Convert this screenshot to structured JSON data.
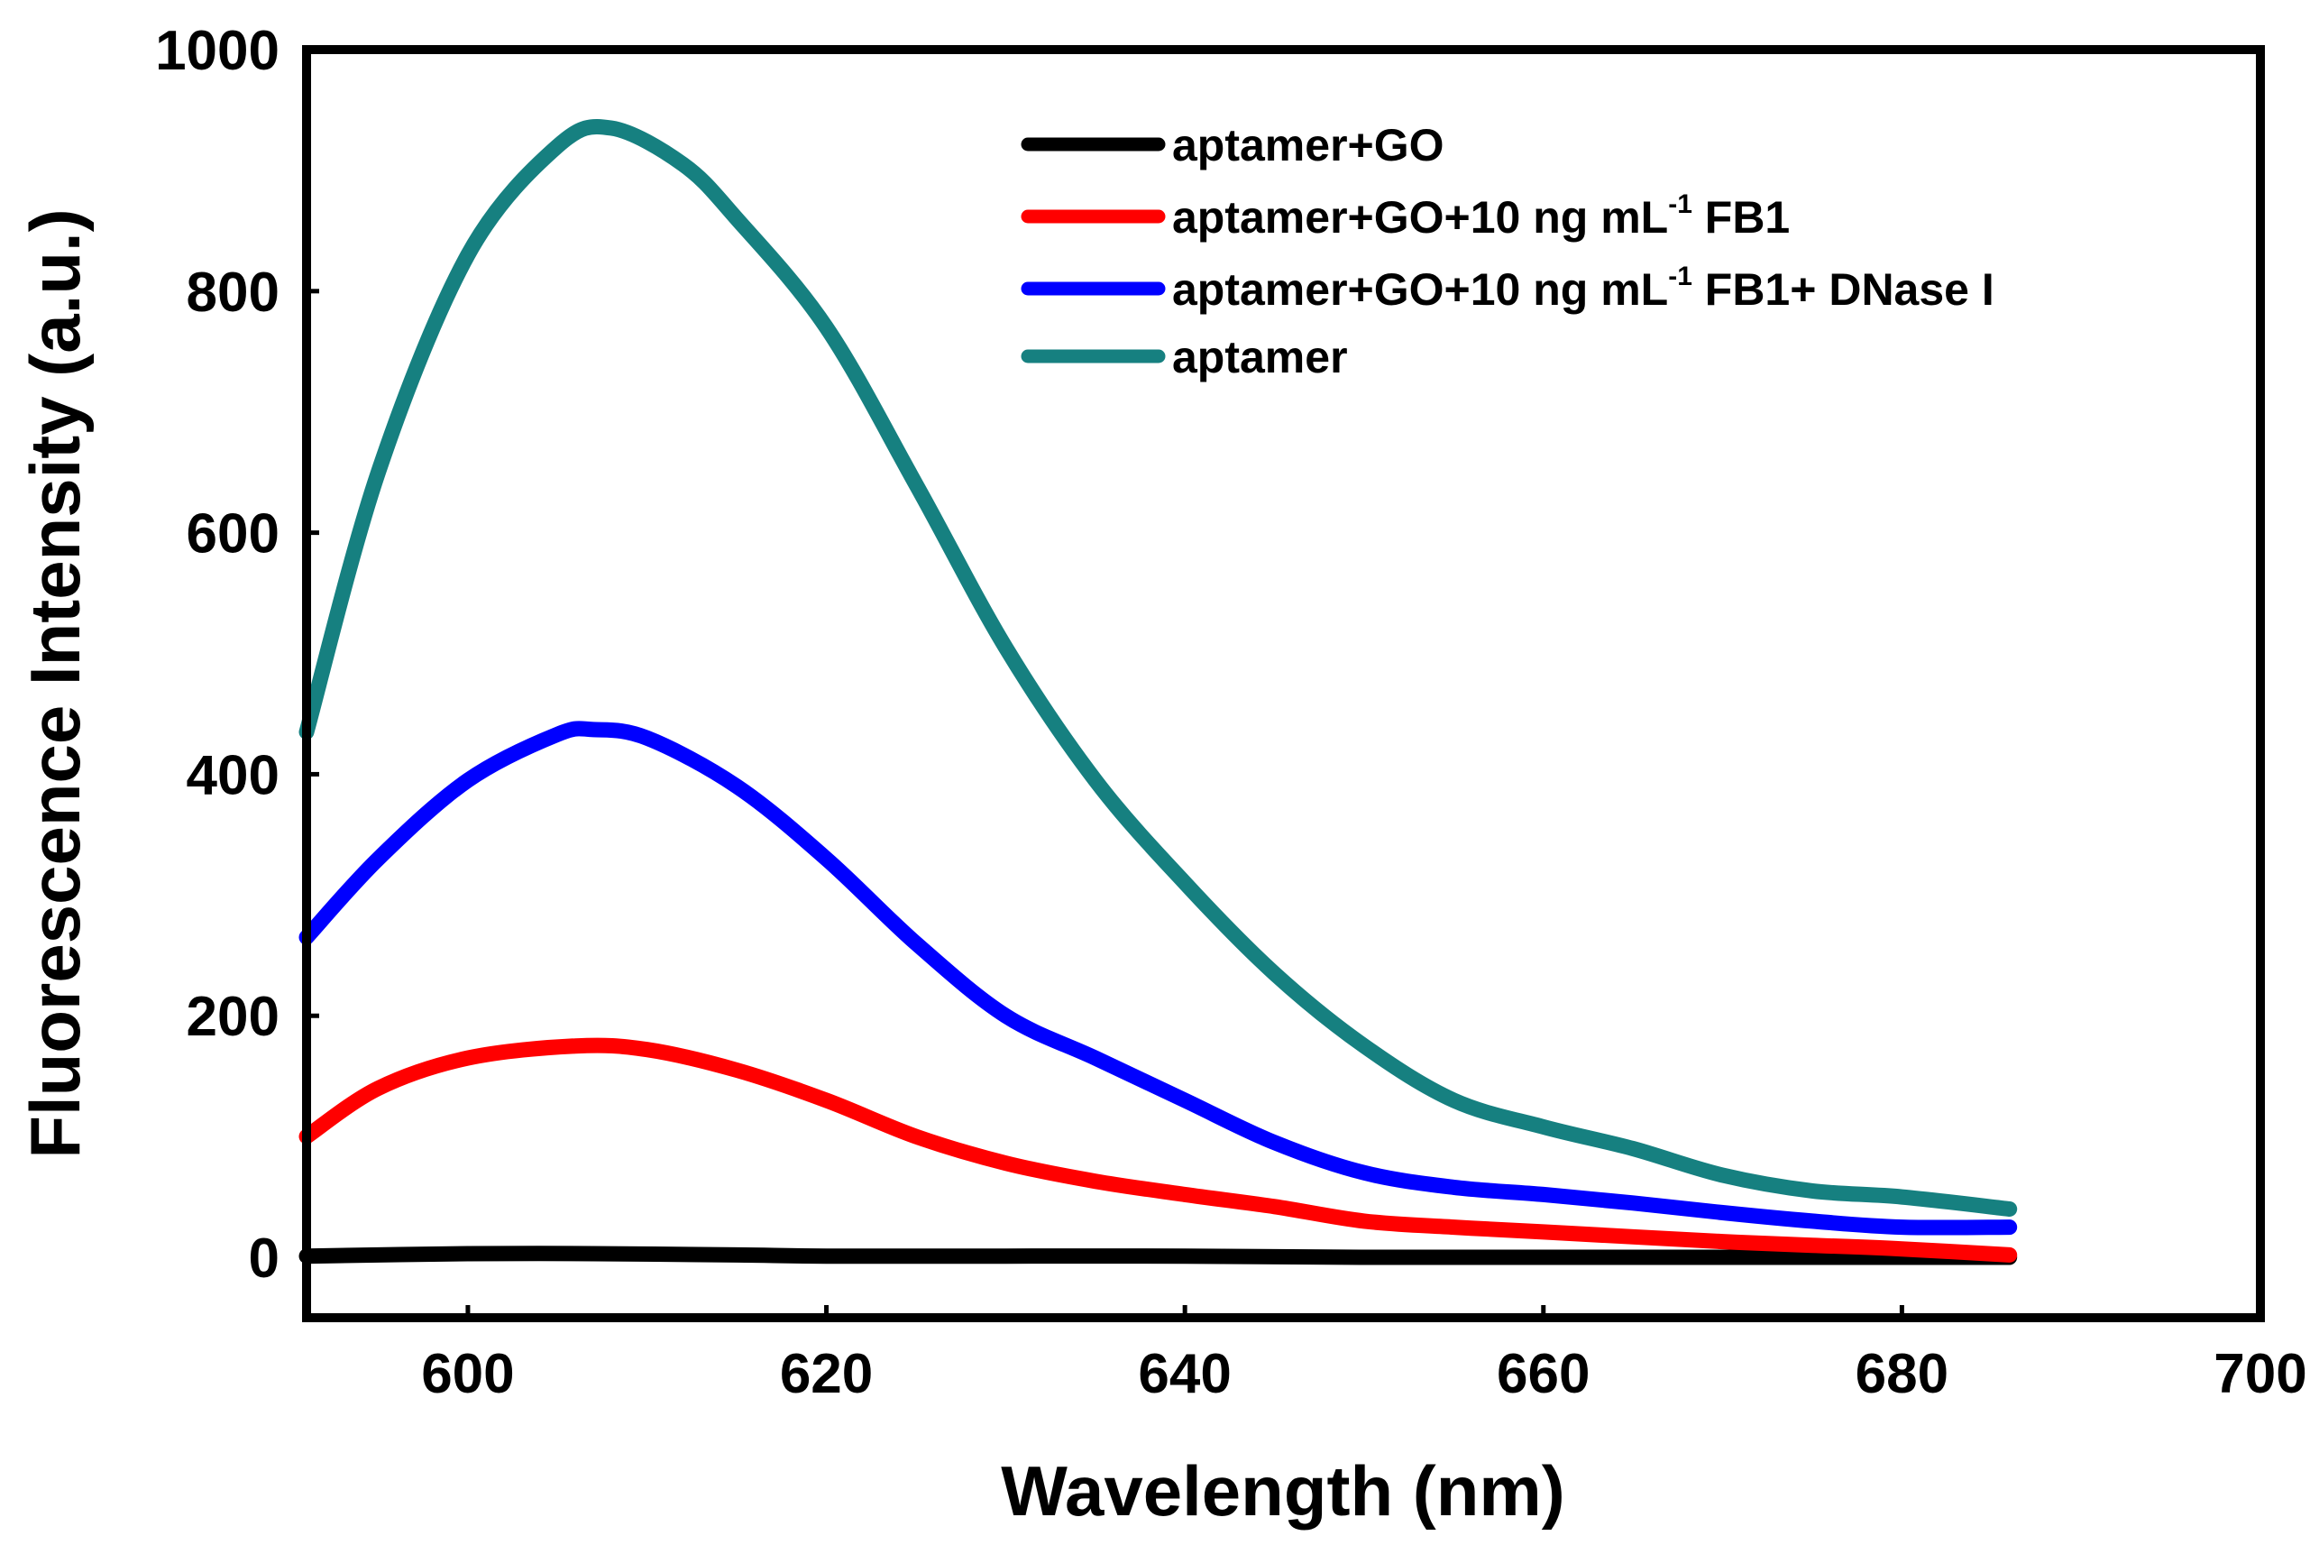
{
  "chart_data": {
    "type": "line",
    "title": "",
    "xlabel": "Wavelength (nm)",
    "ylabel": "Fluorescence Intensity (a.u.)",
    "xlim": [
      591,
      700
    ],
    "ylim": [
      -50,
      1000
    ],
    "xticks": [
      600,
      620,
      640,
      660,
      680,
      700
    ],
    "yticks": [
      0,
      200,
      400,
      600,
      800,
      1000
    ],
    "xtick_labels": [
      "600",
      "620",
      "640",
      "660",
      "680",
      "700"
    ],
    "ytick_labels": [
      "0",
      "200",
      "400",
      "600",
      "800",
      "1000"
    ],
    "grid": false,
    "legend_position": "top-right",
    "series": [
      {
        "name": "aptamer+GO",
        "legend": {
          "prefix": "aptamer+GO",
          "sup": "",
          "suffix": ""
        },
        "color": "#000000",
        "x": [
          591,
          600,
          607,
          615,
          620,
          630,
          640,
          650,
          660,
          670,
          680,
          686
        ],
        "y": [
          1,
          3,
          3,
          2,
          1,
          1,
          1,
          0,
          0,
          0,
          0,
          0
        ]
      },
      {
        "name": "aptamer+GO+10 ng mL-1 FB1",
        "legend": {
          "prefix": "aptamer+GO+10 ng mL",
          "sup": "-1",
          "suffix": " FB1"
        },
        "color": "#ff0000",
        "x": [
          591,
          595,
          600,
          606,
          610,
          615,
          620,
          625,
          630,
          635,
          640,
          645,
          650,
          655,
          660,
          665,
          670,
          675,
          680,
          686
        ],
        "y": [
          100,
          140,
          165,
          175,
          172,
          155,
          130,
          100,
          78,
          63,
          52,
          42,
          30,
          25,
          21,
          17,
          13,
          10,
          7,
          2
        ]
      },
      {
        "name": "aptamer+GO+10 ng mL-1 FB1+ DNase I",
        "legend": {
          "prefix": "aptamer+GO+10 ng mL",
          "sup": "-1",
          "suffix": " FB1+ DNase I"
        },
        "color": "#0000ff",
        "x": [
          591,
          595,
          600,
          605,
          607,
          610,
          615,
          620,
          625,
          630,
          635,
          640,
          645,
          650,
          655,
          660,
          665,
          670,
          675,
          680,
          686
        ],
        "y": [
          265,
          330,
          395,
          433,
          437,
          430,
          390,
          330,
          260,
          200,
          165,
          130,
          95,
          70,
          58,
          52,
          45,
          37,
          30,
          25,
          25
        ]
      },
      {
        "name": "aptamer",
        "legend": {
          "prefix": "aptamer",
          "sup": "",
          "suffix": ""
        },
        "color": "#168080",
        "x": [
          591,
          595,
          600,
          605,
          608,
          612,
          615,
          620,
          625,
          630,
          635,
          640,
          645,
          650,
          655,
          660,
          665,
          670,
          675,
          680,
          686
        ],
        "y": [
          435,
          650,
          830,
          920,
          935,
          905,
          860,
          770,
          640,
          505,
          395,
          310,
          235,
          175,
          130,
          108,
          90,
          68,
          55,
          50,
          40
        ]
      }
    ]
  }
}
